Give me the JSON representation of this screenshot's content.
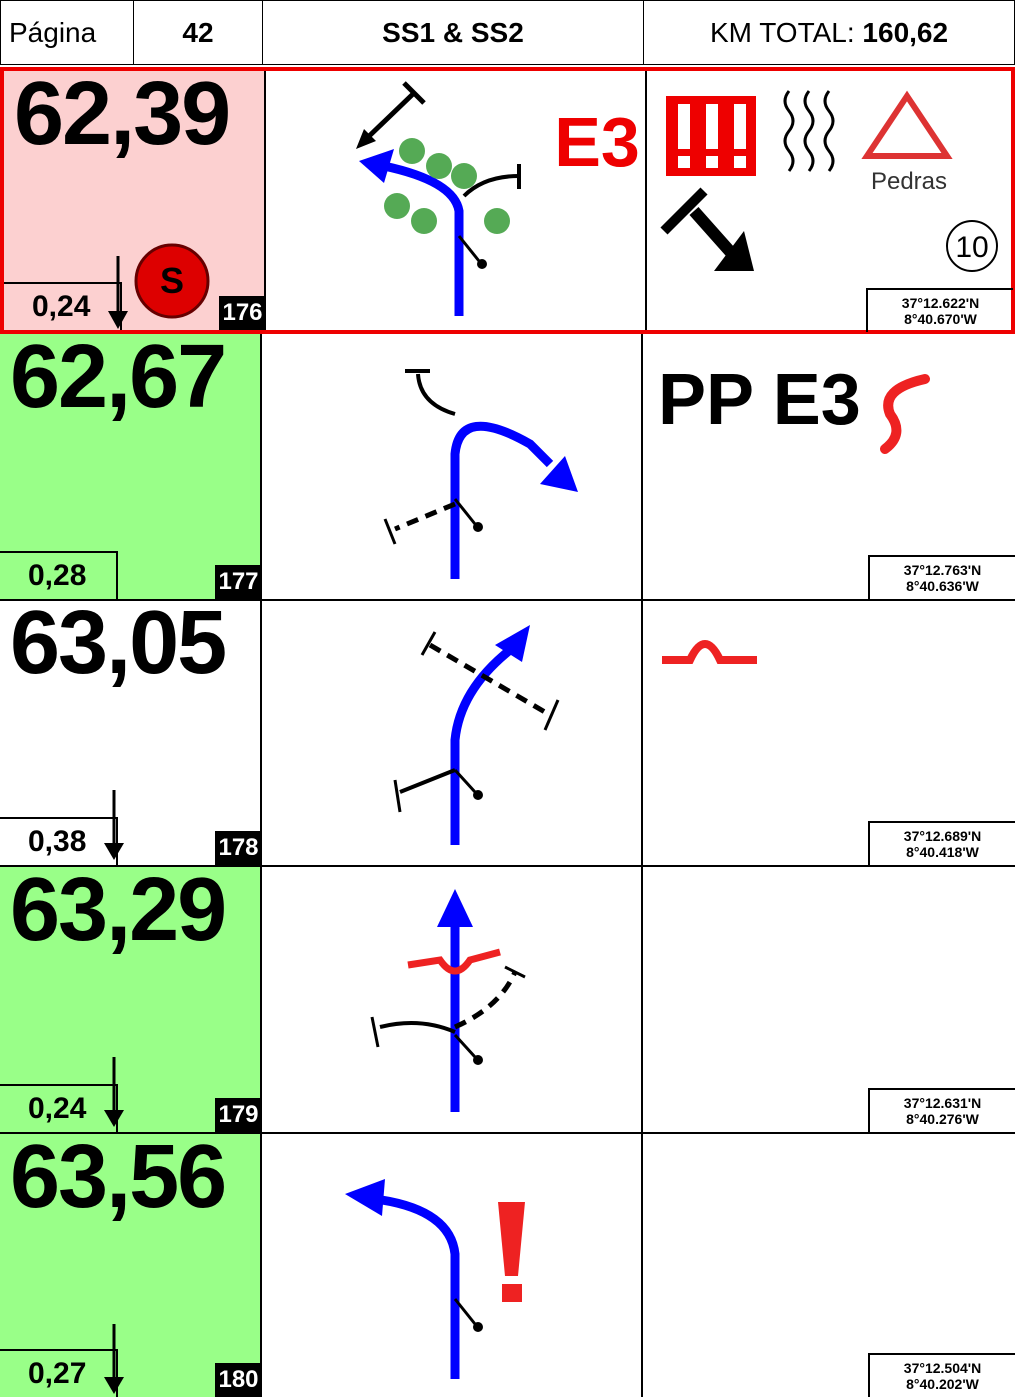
{
  "header": {
    "page_label": "Página",
    "page": "42",
    "stage": "SS1 & SS2",
    "km_label": "KM TOTAL:",
    "km_total": "160,62"
  },
  "rows": [
    {
      "total": "62,39",
      "partial": "0,24",
      "number": "176",
      "lat": "37°12.622'N",
      "lon": "8°40.670'W",
      "note": "E3",
      "sign": "Pedras",
      "badge": "S",
      "circle": "10"
    },
    {
      "total": "62,67",
      "partial": "0,28",
      "number": "177",
      "lat": "37°12.763'N",
      "lon": "8°40.636'W",
      "note": "PP E3"
    },
    {
      "total": "63,05",
      "partial": "0,38",
      "number": "178",
      "lat": "37°12.689'N",
      "lon": "8°40.418'W"
    },
    {
      "total": "63,29",
      "partial": "0,24",
      "number": "179",
      "lat": "37°12.631'N",
      "lon": "8°40.276'W"
    },
    {
      "total": "63,56",
      "partial": "0,27",
      "number": "180",
      "lat": "37°12.504'N",
      "lon": "8°40.202'W"
    }
  ]
}
